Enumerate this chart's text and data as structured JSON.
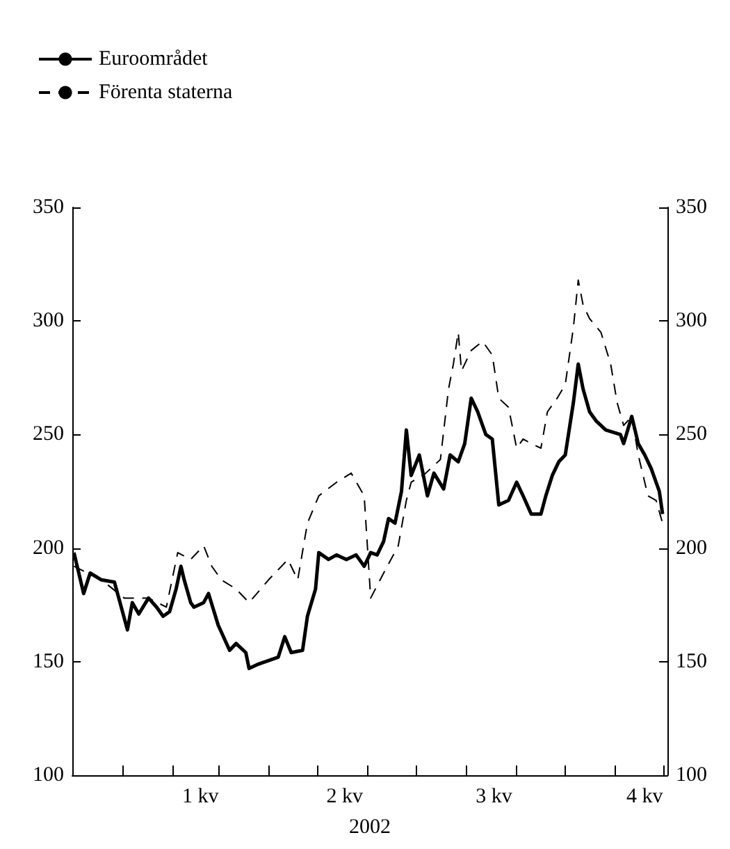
{
  "chart_data": {
    "type": "line",
    "xlabel": "2002",
    "legend": "top left",
    "xlim": [
      "2001-12-01",
      "2002-12-03"
    ],
    "xticks": [
      {
        "value": "2002-01-01",
        "label": null
      },
      {
        "value": "2002-02-01",
        "label": null
      },
      {
        "value": "2002-03-01",
        "label": null
      },
      {
        "value": "2002-04-01",
        "label": null
      },
      {
        "value": "2002-05-01",
        "label": null
      },
      {
        "value": "2002-06-01",
        "label": null
      },
      {
        "value": "2002-07-01",
        "label": null
      },
      {
        "value": "2002-08-01",
        "label": null
      },
      {
        "value": "2002-09-01",
        "label": null
      },
      {
        "value": "2002-10-01",
        "label": null
      },
      {
        "value": "2002-11-01",
        "label": null
      },
      {
        "value": "2002-12-01",
        "label": null
      },
      {
        "value": "2002-02-18",
        "label": "1 kv"
      },
      {
        "value": "2002-05-18",
        "label": "2 kv"
      },
      {
        "value": "2002-08-18",
        "label": "3 kv"
      },
      {
        "value": "2002-11-19",
        "label": "4 kv"
      }
    ],
    "ylim": [
      100,
      350
    ],
    "yticks": [
      100,
      150,
      200,
      250,
      300,
      350
    ],
    "y2lim": [
      100,
      350
    ],
    "y2ticks": [
      100,
      150,
      200,
      250,
      300,
      350
    ],
    "grid": false,
    "series": [
      {
        "name": "Euroområdet",
        "color": "#000000",
        "line_style": "solid",
        "x": [
          "2001-12-02",
          "2001-12-08",
          "2001-12-12",
          "2001-12-19",
          "2001-12-27",
          "2002-01-04",
          "2002-01-07",
          "2002-01-11",
          "2002-01-17",
          "2002-01-22",
          "2002-01-26",
          "2002-01-30",
          "2002-02-03",
          "2002-02-06",
          "2002-02-08",
          "2002-02-12",
          "2002-02-14",
          "2002-02-20",
          "2002-02-23",
          "2002-03-01",
          "2002-03-08",
          "2002-03-12",
          "2002-03-18",
          "2002-03-20",
          "2002-03-26",
          "2002-04-07",
          "2002-04-11",
          "2002-04-15",
          "2002-04-22",
          "2002-04-25",
          "2002-04-30",
          "2002-05-02",
          "2002-05-08",
          "2002-05-13",
          "2002-05-19",
          "2002-05-25",
          "2002-05-30",
          "2002-06-03",
          "2002-06-07",
          "2002-06-11",
          "2002-06-14",
          "2002-06-18",
          "2002-06-22",
          "2002-06-25",
          "2002-06-28",
          "2002-07-03",
          "2002-07-08",
          "2002-07-12",
          "2002-07-18",
          "2002-07-22",
          "2002-07-27",
          "2002-07-31",
          "2002-08-04",
          "2002-08-08",
          "2002-08-13",
          "2002-08-17",
          "2002-08-21",
          "2002-08-27",
          "2002-09-01",
          "2002-09-05",
          "2002-09-10",
          "2002-09-16",
          "2002-09-19",
          "2002-09-23",
          "2002-09-27",
          "2002-10-01",
          "2002-10-06",
          "2002-10-09",
          "2002-10-12",
          "2002-10-16",
          "2002-10-20",
          "2002-10-26",
          "2002-11-04",
          "2002-11-06",
          "2002-11-11",
          "2002-11-15",
          "2002-11-19",
          "2002-11-23",
          "2002-11-28",
          "2002-11-30"
        ],
        "values": [
          198,
          180,
          189,
          186,
          185,
          164,
          176,
          171,
          178,
          174,
          170,
          172,
          182,
          192,
          186,
          176,
          174,
          176,
          180,
          166,
          155,
          158,
          154,
          147,
          149,
          152,
          161,
          154,
          155,
          170,
          182,
          198,
          195,
          197,
          195,
          197,
          192,
          198,
          197,
          203,
          213,
          211,
          225,
          252,
          232,
          241,
          223,
          233,
          226,
          241,
          238,
          246,
          266,
          260,
          250,
          248,
          219,
          221,
          229,
          223,
          215,
          215,
          223,
          232,
          238,
          241,
          264,
          281,
          270,
          260,
          256,
          252,
          250,
          246,
          258,
          246,
          241,
          235,
          225,
          215
        ]
      },
      {
        "name": "Förenta staterna",
        "color": "#000000",
        "line_style": "dashed",
        "x": [
          "2001-12-02",
          "2001-12-19",
          "2002-01-02",
          "2002-01-17",
          "2002-01-28",
          "2002-02-04",
          "2002-02-12",
          "2002-02-20",
          "2002-02-25",
          "2002-03-03",
          "2002-03-12",
          "2002-03-20",
          "2002-04-01",
          "2002-04-13",
          "2002-04-19",
          "2002-04-25",
          "2002-05-02",
          "2002-05-13",
          "2002-05-22",
          "2002-05-30",
          "2002-06-03",
          "2002-06-11",
          "2002-06-20",
          "2002-06-25",
          "2002-06-28",
          "2002-07-07",
          "2002-07-16",
          "2002-07-21",
          "2002-07-24",
          "2002-07-27",
          "2002-07-29",
          "2002-08-04",
          "2002-08-11",
          "2002-08-17",
          "2002-08-21",
          "2002-08-27",
          "2002-09-01",
          "2002-09-05",
          "2002-09-10",
          "2002-09-16",
          "2002-09-20",
          "2002-09-26",
          "2002-10-01",
          "2002-10-06",
          "2002-10-09",
          "2002-10-12",
          "2002-10-16",
          "2002-10-23",
          "2002-10-29",
          "2002-11-02",
          "2002-11-06",
          "2002-11-11",
          "2002-11-15",
          "2002-11-21",
          "2002-11-26",
          "2002-11-30"
        ],
        "values": [
          192,
          186,
          178,
          178,
          174,
          198,
          195,
          201,
          192,
          186,
          182,
          176,
          186,
          195,
          186,
          211,
          223,
          229,
          233,
          223,
          178,
          189,
          201,
          221,
          229,
          233,
          239,
          270,
          281,
          295,
          278,
          287,
          291,
          285,
          266,
          262,
          244,
          248,
          246,
          244,
          260,
          266,
          272,
          297,
          318,
          307,
          301,
          295,
          281,
          264,
          254,
          258,
          241,
          223,
          221,
          211
        ]
      }
    ]
  }
}
